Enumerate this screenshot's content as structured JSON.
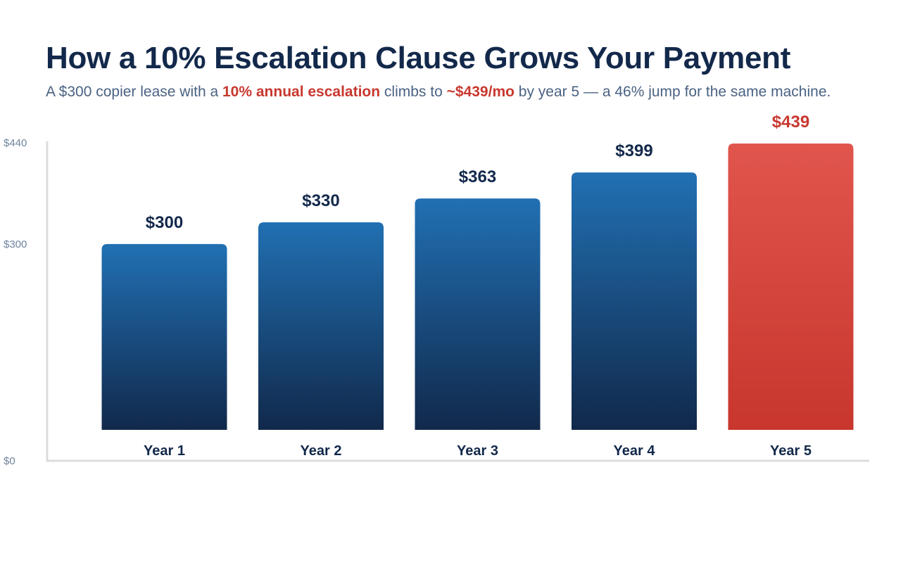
{
  "header": {
    "title": "How a 10% Escalation Clause Grows Your Payment",
    "subtitle_parts": [
      "A $300 copier lease with a ",
      "10% annual escalation",
      " climbs to ",
      "~$439/mo",
      " by year 5 — a 46% jump for the same machine."
    ]
  },
  "chart_data": {
    "type": "bar",
    "categories": [
      "Year 1",
      "Year 2",
      "Year 3",
      "Year 4",
      "Year 5"
    ],
    "values": [
      300,
      330,
      363,
      399,
      439
    ],
    "value_labels": [
      "$300",
      "$330",
      "$363",
      "$399",
      "$439"
    ],
    "y_ticks": [
      {
        "value": 0,
        "label": "$0"
      },
      {
        "value": 300,
        "label": "$300"
      },
      {
        "value": 440,
        "label": "$440"
      }
    ],
    "ylim": [
      0,
      440
    ],
    "grid": false,
    "highlight_index": 4,
    "colors": {
      "bar_top": "#2170b3",
      "bar_bottom": "#11294b",
      "highlight_top": "#e0554d",
      "highlight_bottom": "#c8362d",
      "label": "#13294b",
      "highlight_label": "#c8382f",
      "axis": "#dcdcdc"
    }
  }
}
